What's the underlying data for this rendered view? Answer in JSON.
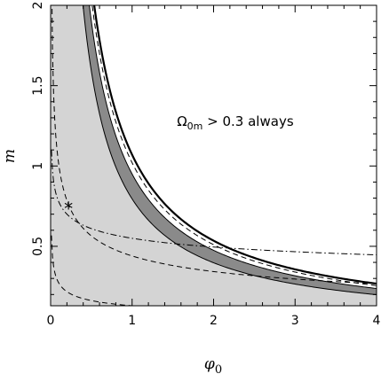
{
  "chart_data": {
    "type": "line",
    "xlabel": "φ",
    "xlabel_sub": "0",
    "ylabel": "m",
    "xlim": [
      0,
      4
    ],
    "ylim": [
      0.13,
      2.0
    ],
    "x_ticks": [
      {
        "v": 0,
        "label": "0"
      },
      {
        "v": 1,
        "label": "1"
      },
      {
        "v": 2,
        "label": "2"
      },
      {
        "v": 3,
        "label": "3"
      },
      {
        "v": 4,
        "label": "4"
      }
    ],
    "y_ticks": [
      {
        "v": 0.5,
        "label": "0.5"
      },
      {
        "v": 1.0,
        "label": "1"
      },
      {
        "v": 1.5,
        "label": "1.5"
      },
      {
        "v": 2.0,
        "label": "2"
      }
    ],
    "annotation": {
      "greek": "Ω",
      "sub": "0m",
      "text": " > 0.3 always",
      "x": 1.55,
      "y": 1.25
    },
    "marker": {
      "x": 0.22,
      "y": 0.745,
      "symbol": "*"
    },
    "regions": {
      "outer_boundary_k": 1.07,
      "middle_boundary_k": 0.95,
      "inner_boundary_k": 0.795,
      "light_fill": "#d4d4d4",
      "dark_fill": "#8a8a8a"
    },
    "curves": [
      {
        "style": "dashed",
        "k": 1.02,
        "p": 1.0
      },
      {
        "style": "dashed",
        "k": 0.44,
        "p": 0.36
      },
      {
        "style": "dashed",
        "k": 0.13,
        "p": 0.32
      },
      {
        "style": "dashdot",
        "k": 0.55,
        "p": 0.15
      }
    ]
  }
}
